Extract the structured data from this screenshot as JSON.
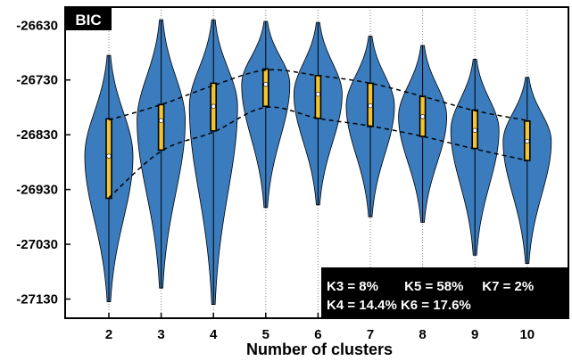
{
  "chart_data": {
    "type": "violin",
    "title": "BIC",
    "xlabel": "Number of clusters",
    "ylabel": "",
    "categories": [
      "2",
      "3",
      "4",
      "5",
      "6",
      "7",
      "8",
      "9",
      "10"
    ],
    "ylim": [
      -27165,
      -26597
    ],
    "yticks": [
      -26630,
      -26730,
      -26830,
      -26930,
      -27030,
      -27130
    ],
    "ytick_labels": [
      "-26630",
      "-26730",
      "-26830",
      "-26930",
      "-27030",
      "-27130"
    ],
    "violins": [
      {
        "x": "2",
        "min": -27135,
        "max": -26685,
        "q1": -26946,
        "median": -26869,
        "q3": -26801
      },
      {
        "x": "3",
        "min": -27110,
        "max": -26620,
        "q1": -26858,
        "median": -26804,
        "q3": -26775
      },
      {
        "x": "4",
        "min": -27140,
        "max": -26620,
        "q1": -26823,
        "median": -26778,
        "q3": -26736
      },
      {
        "x": "5",
        "min": -26963,
        "max": -26623,
        "q1": -26778,
        "median": -26738,
        "q3": -26710
      },
      {
        "x": "6",
        "min": -26958,
        "max": -26625,
        "q1": -26800,
        "median": -26756,
        "q3": -26722
      },
      {
        "x": "7",
        "min": -26980,
        "max": -26650,
        "q1": -26815,
        "median": -26777,
        "q3": -26736
      },
      {
        "x": "8",
        "min": -26990,
        "max": -26667,
        "q1": -26833,
        "median": -26797,
        "q3": -26760
      },
      {
        "x": "9",
        "min": -27050,
        "max": -26692,
        "q1": -26855,
        "median": -26822,
        "q3": -26785
      },
      {
        "x": "10",
        "min": -27065,
        "max": -26725,
        "q1": -26877,
        "median": -26842,
        "q3": -26805
      }
    ],
    "trend_lines": [
      {
        "name": "upper",
        "points": [
          [
            "2",
            -26803
          ],
          [
            "3",
            -26775
          ],
          [
            "4",
            -26740
          ],
          [
            "5",
            -26712
          ],
          [
            "6",
            -26722
          ],
          [
            "7",
            -26736
          ],
          [
            "8",
            -26760
          ],
          [
            "9",
            -26786
          ],
          [
            "10",
            -26804
          ]
        ]
      },
      {
        "name": "lower",
        "points": [
          [
            "2",
            -26945
          ],
          [
            "3",
            -26860
          ],
          [
            "4",
            -26825
          ],
          [
            "5",
            -26780
          ],
          [
            "6",
            -26800
          ],
          [
            "7",
            -26814
          ],
          [
            "8",
            -26833
          ],
          [
            "9",
            -26856
          ],
          [
            "10",
            -26877
          ]
        ]
      }
    ],
    "violin_color": "#3a7cbd",
    "box_color": "#f4c431",
    "annotation_lines": [
      "K3 = 8%       K5 = 58%     K7 = 2%",
      "K4 = 14.4% K6 = 17.6%"
    ],
    "grid": false,
    "x_gridlines": "dotted"
  }
}
